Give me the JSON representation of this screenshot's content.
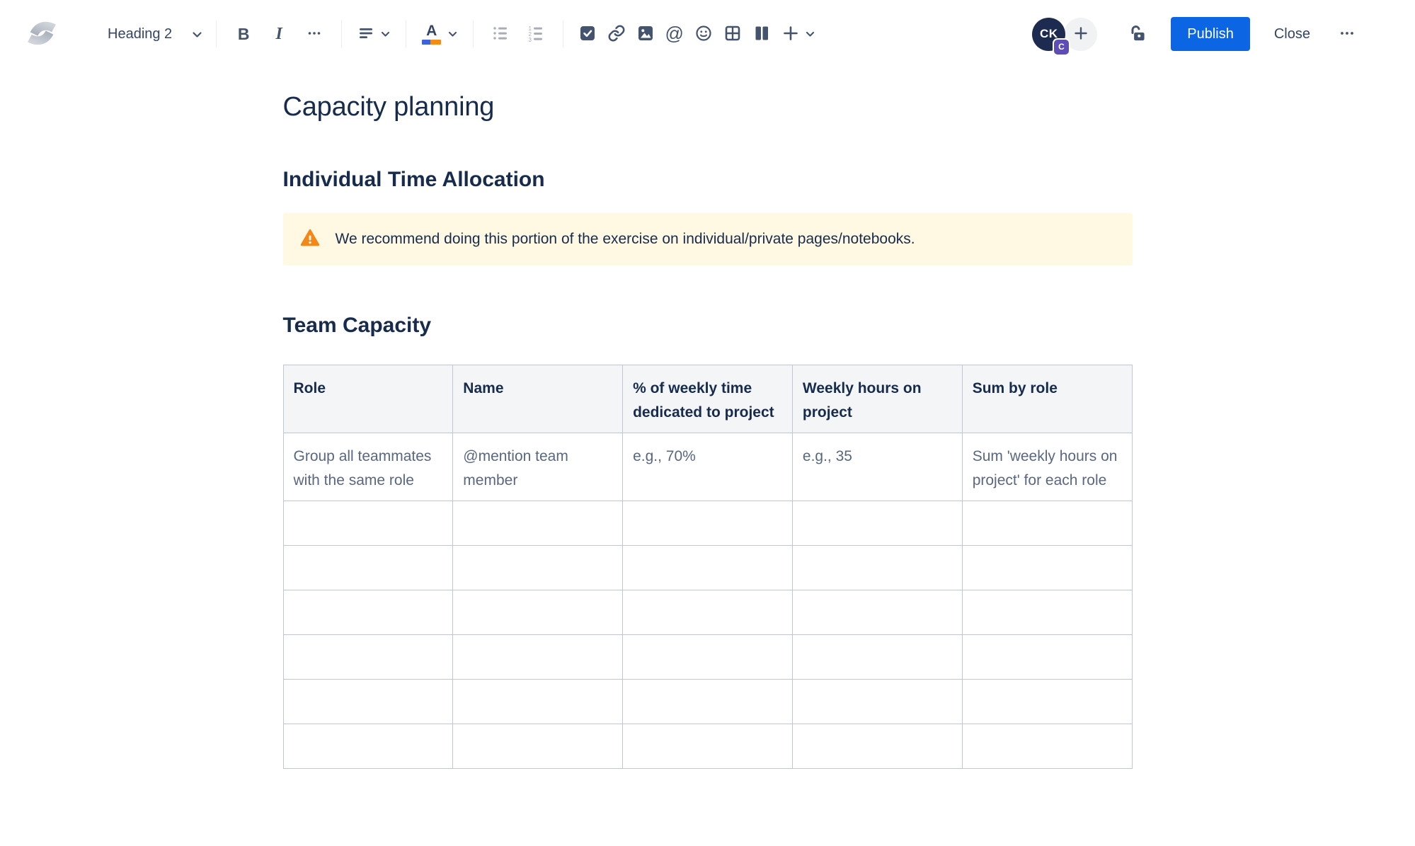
{
  "toolbar": {
    "block_style_label": "Heading 2",
    "bold_label": "B",
    "italic_label": "I",
    "color_letter": "A",
    "mention_symbol": "@"
  },
  "actions": {
    "avatar_initials": "CK",
    "avatar_badge": "C",
    "publish_label": "Publish",
    "close_label": "Close"
  },
  "page": {
    "title": "Capacity planning",
    "section_individual": "Individual Time Allocation",
    "warning_text": "We recommend doing this portion of the exercise on individual/private pages/notebooks.",
    "section_team": "Team Capacity"
  },
  "table": {
    "headers": [
      "Role",
      "Name",
      "% of weekly time dedicated to project",
      "Weekly hours on project",
      "Sum by role"
    ],
    "example_row": [
      "Group all teammates with the same role",
      "@mention team member",
      "e.g., 70%",
      "e.g., 35",
      "Sum 'weekly hours on project' for each role"
    ],
    "empty_row_count": 6
  },
  "colors": {
    "accent_blue": "#0C66E4",
    "warning_bg": "#FFF8E2",
    "warning_icon_orange": "#F18817",
    "badge_purple": "#5E4DB2",
    "heading_text": "#172B4D",
    "toolbar_icon": "#44546F",
    "table_border": "#C1C7D0",
    "table_header_bg": "#F4F5F7"
  }
}
